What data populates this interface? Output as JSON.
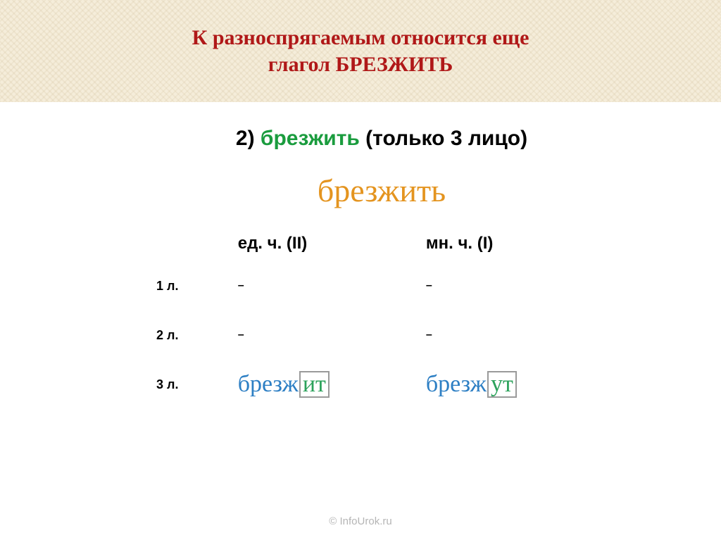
{
  "header": {
    "title_line1": "К  разноспрягаемым относится еще",
    "title_line2": "глагол БРЕЗЖИТЬ",
    "title_color": "#b01818",
    "title_fontsize": 30
  },
  "subhead": {
    "num": "2)",
    "verb": "брезжить",
    "verb_color": "#1a9c3e",
    "note": "(только 3 лицо)",
    "fontsize": 30
  },
  "cursive": {
    "word": "брезжить",
    "color": "#e4941f",
    "fontsize": 46
  },
  "table": {
    "col_headers": {
      "sg": "ед. ч. (II)",
      "pl": "мн. ч. (I)",
      "fontsize": 24
    },
    "row_labels": {
      "r1": "1 л.",
      "r2": "2 л.",
      "r3": "3 л.",
      "fontsize": 18
    },
    "dash": "–",
    "row3": {
      "stem": "брезж",
      "sg_ending": "ит",
      "pl_ending": "ут",
      "stem_color": "#2d7fc4",
      "ending_color": "#2ca25b",
      "fontsize": 34
    }
  },
  "footer": {
    "text": "© InfoUrok.ru"
  },
  "colors": {
    "band_bg": "#f5edda",
    "box_border": "#9a9a9a",
    "footer_text": "#b5b5b5"
  }
}
